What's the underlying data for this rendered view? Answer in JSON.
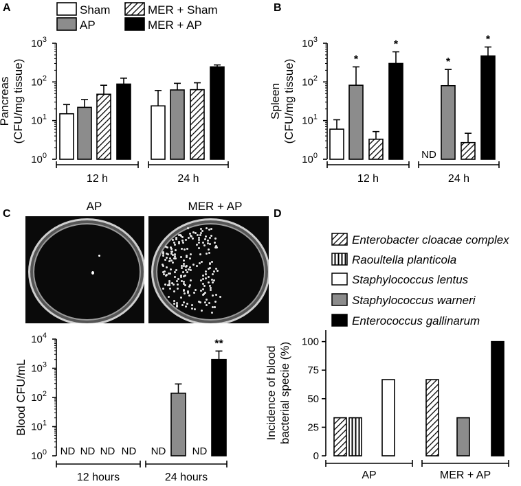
{
  "panels": {
    "A": "A",
    "B": "B",
    "C": "C",
    "D": "D"
  },
  "colors": {
    "sham": "#ffffff",
    "ap": "#8c8c8c",
    "mer_ap": "#000000",
    "edge": "#000000"
  },
  "legend_AB": [
    {
      "label": "Sham",
      "fill": "white"
    },
    {
      "label": "AP",
      "fill": "gray"
    },
    {
      "label": "MER + Sham",
      "fill": "hatch"
    },
    {
      "label": "MER + AP",
      "fill": "black"
    }
  ],
  "plates": {
    "left_title": "AP",
    "right_title": "MER + AP"
  },
  "chart_data": [
    {
      "panel": "A",
      "type": "bar",
      "ylabel": [
        "Pancreas",
        "(CFU/mg tissue)"
      ],
      "yscale": "log",
      "ylim": [
        1,
        1000
      ],
      "yticks": [
        {
          "base": "10",
          "exp": "0"
        },
        {
          "base": "10",
          "exp": "1"
        },
        {
          "base": "10",
          "exp": "2"
        },
        {
          "base": "10",
          "exp": "3"
        }
      ],
      "groups": [
        "12 h",
        "24 h"
      ],
      "series": [
        {
          "name": "Sham",
          "fill": "white",
          "values": [
            15,
            24
          ],
          "errors": [
            26,
            60
          ]
        },
        {
          "name": "AP",
          "fill": "gray",
          "values": [
            22,
            62
          ],
          "errors": [
            35,
            92
          ]
        },
        {
          "name": "MER + Sham",
          "fill": "hatch",
          "values": [
            48,
            63
          ],
          "errors": [
            82,
            95
          ]
        },
        {
          "name": "MER + AP",
          "fill": "black",
          "values": [
            88,
            245
          ],
          "errors": [
            125,
            275
          ]
        }
      ],
      "annotations": []
    },
    {
      "panel": "B",
      "type": "bar",
      "ylabel": [
        "Spleen",
        "(CFU/mg tissue)"
      ],
      "yscale": "log",
      "ylim": [
        1,
        1000
      ],
      "yticks": [
        {
          "base": "10",
          "exp": "0"
        },
        {
          "base": "10",
          "exp": "1"
        },
        {
          "base": "10",
          "exp": "2"
        },
        {
          "base": "10",
          "exp": "3"
        }
      ],
      "groups": [
        "12 h",
        "24 h"
      ],
      "series": [
        {
          "name": "Sham",
          "fill": "white",
          "values": [
            6,
            null
          ],
          "errors": [
            10.5,
            null
          ]
        },
        {
          "name": "AP",
          "fill": "gray",
          "values": [
            82,
            80
          ],
          "errors": [
            245,
            210
          ]
        },
        {
          "name": "MER + Sham",
          "fill": "hatch",
          "values": [
            3.3,
            2.7
          ],
          "errors": [
            5.2,
            4.7
          ]
        },
        {
          "name": "MER + AP",
          "fill": "black",
          "values": [
            300,
            470
          ],
          "errors": [
            600,
            800
          ]
        }
      ],
      "annotations": [
        {
          "group": 0,
          "series": 1,
          "text": "*"
        },
        {
          "group": 0,
          "series": 3,
          "text": "*"
        },
        {
          "group": 1,
          "series": 1,
          "text": "*"
        },
        {
          "group": 1,
          "series": 3,
          "text": "*"
        },
        {
          "group": 1,
          "series": 0,
          "text": "ND"
        }
      ]
    },
    {
      "panel": "C",
      "type": "bar",
      "ylabel": [
        "Blood CFU/mL"
      ],
      "yscale": "log",
      "ylim": [
        1,
        10000
      ],
      "yticks": [
        {
          "base": "10",
          "exp": "0"
        },
        {
          "base": "10",
          "exp": "1"
        },
        {
          "base": "10",
          "exp": "2"
        },
        {
          "base": "10",
          "exp": "3"
        },
        {
          "base": "10",
          "exp": "4"
        }
      ],
      "groups": [
        "12 hours",
        "24 hours"
      ],
      "series": [
        {
          "name": "Sham",
          "fill": "white",
          "values": [
            null,
            null
          ],
          "errors": [
            null,
            null
          ]
        },
        {
          "name": "AP",
          "fill": "gray",
          "values": [
            null,
            140
          ],
          "errors": [
            null,
            290
          ]
        },
        {
          "name": "MER + Sham",
          "fill": "hatch",
          "values": [
            null,
            null
          ],
          "errors": [
            null,
            null
          ]
        },
        {
          "name": "MER + AP",
          "fill": "black",
          "values": [
            null,
            2000
          ],
          "errors": [
            null,
            3900
          ]
        }
      ],
      "annotations": [
        {
          "group": 0,
          "series": 0,
          "text": "ND"
        },
        {
          "group": 0,
          "series": 1,
          "text": "ND"
        },
        {
          "group": 0,
          "series": 2,
          "text": "ND"
        },
        {
          "group": 0,
          "series": 3,
          "text": "ND"
        },
        {
          "group": 1,
          "series": 0,
          "text": "ND"
        },
        {
          "group": 1,
          "series": 2,
          "text": "ND"
        },
        {
          "group": 1,
          "series": 3,
          "text": "**"
        }
      ]
    },
    {
      "panel": "D",
      "type": "bar",
      "ylabel": [
        "Incidence of blood",
        "bacterial specie (%)"
      ],
      "yscale": "linear",
      "ylim": [
        0,
        110
      ],
      "yticks": [
        {
          "base": "0"
        },
        {
          "base": "25"
        },
        {
          "base": "50"
        },
        {
          "base": "75"
        },
        {
          "base": "100"
        }
      ],
      "groups": [
        "AP",
        "MER + AP"
      ],
      "legend": [
        {
          "label": "Enterobacter cloacae complex",
          "fill": "hatch"
        },
        {
          "label": "Raoultella planticola",
          "fill": "vstripe"
        },
        {
          "label": "Staphylococcus lentus",
          "fill": "white"
        },
        {
          "label": "Staphylococcus warneri",
          "fill": "gray"
        },
        {
          "label": "Enterococcus gallinarum",
          "fill": "black"
        }
      ],
      "series": [
        {
          "name": "Enterobacter cloacae complex",
          "fill": "hatch",
          "values": [
            33.3,
            66.7
          ]
        },
        {
          "name": "Raoultella planticola",
          "fill": "vstripe",
          "values": [
            33.3,
            null
          ]
        },
        {
          "name": "Staphylococcus lentus",
          "fill": "white",
          "values": [
            66.7,
            null
          ]
        },
        {
          "name": "Staphylococcus warneri",
          "fill": "gray",
          "values": [
            null,
            33.3
          ]
        },
        {
          "name": "Enterococcus gallinarum",
          "fill": "black",
          "values": [
            null,
            100
          ]
        }
      ]
    }
  ]
}
